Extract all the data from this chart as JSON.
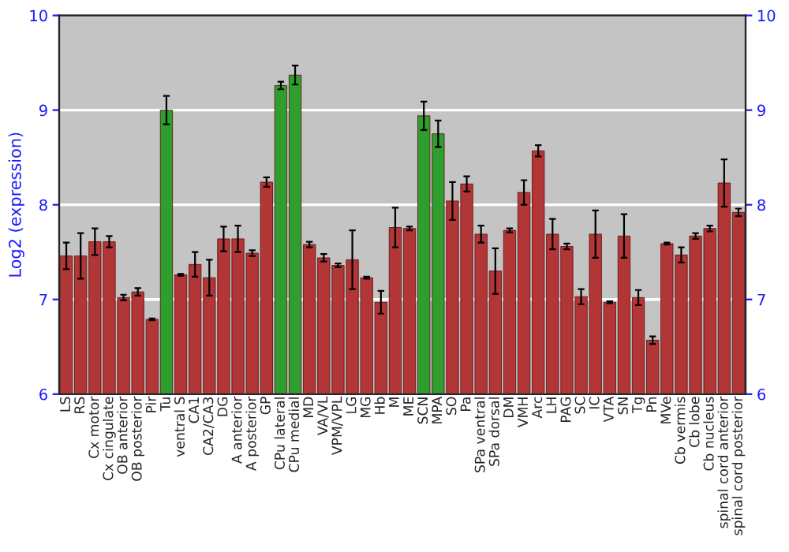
{
  "chart_data": {
    "type": "bar",
    "ylabel": "Log2 (expression)",
    "categories": [
      "LS",
      "RS",
      "Cx motor",
      "Cx cingulate",
      "OB anterior",
      "OB posterior",
      "Pir",
      "Tu",
      "ventral S",
      "CA1",
      "CA2/CA3",
      "DG",
      "A anterior",
      "A posterior",
      "GP",
      "CPu lateral",
      "CPu medial",
      "MD",
      "VA/VL",
      "VPM/VPL",
      "LG",
      "MG",
      "Hb",
      "M",
      "ME",
      "SCN",
      "MPA",
      "SO",
      "Pa",
      "SPa ventral",
      "SPa dorsal",
      "DM",
      "VMH",
      "Arc",
      "LH",
      "PAG",
      "SC",
      "IC",
      "VTA",
      "SN",
      "Tg",
      "Pn",
      "MVe",
      "Cb vermis",
      "Cb lobe",
      "Cb nucleus",
      "spinal cord anterior",
      "spinal cord posterior"
    ],
    "values": [
      7.46,
      7.46,
      7.61,
      7.61,
      7.02,
      7.08,
      6.79,
      9.0,
      7.26,
      7.37,
      7.23,
      7.64,
      7.64,
      7.49,
      8.24,
      9.26,
      9.37,
      7.58,
      7.44,
      7.36,
      7.42,
      7.23,
      6.97,
      7.76,
      7.75,
      8.94,
      8.75,
      8.04,
      8.22,
      7.69,
      7.3,
      7.73,
      8.13,
      8.57,
      7.69,
      7.56,
      7.03,
      7.69,
      6.97,
      7.67,
      7.02,
      6.57,
      7.59,
      7.47,
      7.67,
      7.75,
      8.23,
      7.92
    ],
    "errors": [
      0.14,
      0.24,
      0.14,
      0.06,
      0.03,
      0.04,
      0.01,
      0.15,
      0.01,
      0.13,
      0.19,
      0.13,
      0.14,
      0.03,
      0.05,
      0.04,
      0.1,
      0.03,
      0.04,
      0.02,
      0.31,
      0.01,
      0.12,
      0.21,
      0.02,
      0.15,
      0.14,
      0.2,
      0.08,
      0.09,
      0.24,
      0.02,
      0.13,
      0.06,
      0.16,
      0.03,
      0.08,
      0.25,
      0.01,
      0.23,
      0.08,
      0.04,
      0.01,
      0.08,
      0.03,
      0.03,
      0.25,
      0.04
    ],
    "colors": [
      "#b33636",
      "#b33636",
      "#b33636",
      "#b33636",
      "#b33636",
      "#b33636",
      "#b33636",
      "#2e9e2e",
      "#b33636",
      "#b33636",
      "#b33636",
      "#b33636",
      "#b33636",
      "#b33636",
      "#b33636",
      "#2e9e2e",
      "#2e9e2e",
      "#b33636",
      "#b33636",
      "#b33636",
      "#b33636",
      "#b33636",
      "#b33636",
      "#b33636",
      "#b33636",
      "#2e9e2e",
      "#2e9e2e",
      "#b33636",
      "#b33636",
      "#b33636",
      "#b33636",
      "#b33636",
      "#b33636",
      "#b33636",
      "#b33636",
      "#b33636",
      "#b33636",
      "#b33636",
      "#b33636",
      "#b33636",
      "#b33636",
      "#b33636",
      "#b33636",
      "#b33636",
      "#b33636",
      "#b33636",
      "#b33636",
      "#b33636"
    ],
    "ylim": [
      6,
      10
    ],
    "yticks": [
      6,
      7,
      8,
      9,
      10
    ],
    "y2lim": [
      6,
      10
    ],
    "y2ticks": [
      6,
      7,
      8,
      9,
      10
    ],
    "grid": "y",
    "legend": false
  }
}
